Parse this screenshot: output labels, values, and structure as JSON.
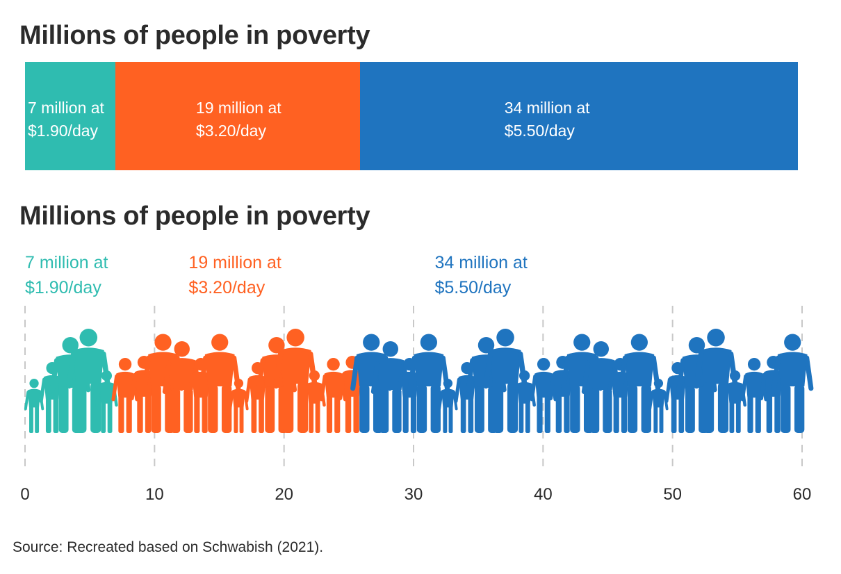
{
  "titles": {
    "top": "Millions of people in poverty",
    "bottom": "Millions of people in poverty"
  },
  "source": "Source: Recreated based on Schwabish (2021).",
  "colors": {
    "teal": "#2fbcb0",
    "orange": "#ff6122",
    "blue": "#1f74bf",
    "gridline": "#c8c8c8",
    "text": "#2b2b2b"
  },
  "chart_data": [
    {
      "type": "bar",
      "orientation": "horizontal-stacked",
      "title": "Millions of people in poverty",
      "series": [
        {
          "label_line1": "7 million at",
          "label_line2": "$1.90/day",
          "value": 7,
          "color": "#2fbcb0"
        },
        {
          "label_line1": "19 million at",
          "label_line2": "$3.20/day",
          "value": 19,
          "color": "#ff6122"
        },
        {
          "label_line1": "34 million at",
          "label_line2": "$5.50/day",
          "value": 34,
          "color": "#1f74bf"
        }
      ]
    },
    {
      "type": "bar",
      "style": "pictograph",
      "title": "Millions of people in poverty",
      "xlim": [
        0,
        60
      ],
      "xticks": [
        "0",
        "10",
        "20",
        "30",
        "40",
        "50",
        "60"
      ],
      "grid": "vertical dashed",
      "series": [
        {
          "label_line1": "7 million at",
          "label_line2": "$1.90/day",
          "value": 7,
          "color": "#2fbcb0"
        },
        {
          "label_line1": "19 million at",
          "label_line2": "$3.20/day",
          "value": 19,
          "color": "#ff6122"
        },
        {
          "label_line1": "34 million at",
          "label_line2": "$5.50/day",
          "value": 34,
          "color": "#1f74bf"
        }
      ],
      "icons": "person-silhouette"
    }
  ]
}
